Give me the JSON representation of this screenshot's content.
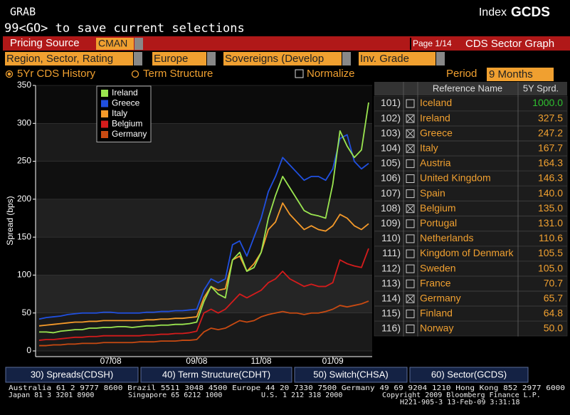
{
  "header": {
    "function": "GRAB",
    "index_label": "Index",
    "index_code": "GCDS",
    "message": "99<GO> to save current selections"
  },
  "toolbar": {
    "pricing_label": "Pricing Source",
    "pricing_value": "CMAN",
    "page": "Page 1/14",
    "screen_title": "CDS Sector Graph",
    "filters": [
      "Region, Sector, Rating",
      "Europe",
      "Sovereigns (Develop",
      "Inv. Grade"
    ]
  },
  "options": {
    "modes": [
      {
        "label": "5Yr CDS History",
        "selected": true
      },
      {
        "label": "Term Structure",
        "selected": false
      }
    ],
    "normalize": {
      "label": "Normalize",
      "checked": false
    },
    "period_label": "Period",
    "period_value": "9 Months"
  },
  "chart_data": {
    "type": "line",
    "ylabel": "Spread (bps)",
    "categories": [
      null,
      null,
      null,
      null,
      null,
      null,
      null,
      null,
      null,
      null,
      "07/08",
      null,
      null,
      null,
      null,
      null,
      null,
      null,
      null,
      null,
      null,
      null,
      "09/08",
      null,
      null,
      null,
      null,
      null,
      null,
      null,
      null,
      "11/08",
      null,
      null,
      null,
      null,
      null,
      null,
      null,
      null,
      null,
      "01/09",
      null,
      null,
      null,
      null,
      null
    ],
    "series": [
      {
        "name": "Ireland",
        "color": "#9be650",
        "values": [
          25,
          25,
          24,
          26,
          27,
          28,
          28,
          30,
          30,
          31,
          31,
          32,
          32,
          31,
          32,
          33,
          33,
          34,
          34,
          35,
          35,
          36,
          38,
          65,
          85,
          75,
          70,
          120,
          130,
          105,
          110,
          130,
          175,
          205,
          230,
          215,
          200,
          185,
          180,
          178,
          175,
          220,
          290,
          270,
          255,
          265,
          327.5
        ]
      },
      {
        "name": "Greece",
        "color": "#2050e0",
        "values": [
          42,
          44,
          45,
          46,
          48,
          49,
          50,
          50,
          50,
          51,
          51,
          50,
          50,
          50,
          50,
          51,
          51,
          52,
          52,
          53,
          53,
          54,
          55,
          80,
          95,
          90,
          95,
          140,
          145,
          125,
          150,
          175,
          210,
          230,
          255,
          245,
          235,
          225,
          230,
          230,
          225,
          240,
          280,
          285,
          250,
          240,
          247.2
        ]
      },
      {
        "name": "Italy",
        "color": "#f59a2a",
        "values": [
          33,
          34,
          35,
          36,
          37,
          38,
          38,
          39,
          39,
          40,
          40,
          40,
          40,
          40,
          40,
          41,
          41,
          42,
          42,
          43,
          43,
          44,
          45,
          70,
          85,
          80,
          82,
          120,
          125,
          105,
          115,
          130,
          160,
          170,
          195,
          180,
          170,
          160,
          165,
          160,
          158,
          165,
          180,
          175,
          165,
          160,
          167.7
        ]
      },
      {
        "name": "Belgium",
        "color": "#d41c1c",
        "values": [
          14,
          15,
          15,
          16,
          17,
          18,
          18,
          19,
          19,
          20,
          20,
          20,
          20,
          20,
          20,
          21,
          21,
          22,
          22,
          23,
          23,
          24,
          26,
          50,
          55,
          50,
          55,
          65,
          75,
          70,
          75,
          80,
          90,
          95,
          105,
          95,
          90,
          85,
          88,
          85,
          85,
          90,
          120,
          115,
          112,
          110,
          135
        ]
      },
      {
        "name": "Germany",
        "color": "#c84a12",
        "values": [
          7,
          7,
          8,
          8,
          9,
          9,
          10,
          10,
          10,
          11,
          11,
          11,
          11,
          11,
          12,
          12,
          12,
          13,
          13,
          13,
          14,
          14,
          15,
          25,
          30,
          28,
          30,
          35,
          40,
          38,
          40,
          45,
          48,
          50,
          52,
          50,
          50,
          48,
          50,
          50,
          52,
          55,
          60,
          58,
          60,
          62,
          65.7
        ]
      }
    ],
    "ylim": [
      0,
      350
    ],
    "yticks": [
      0,
      50,
      100,
      150,
      200,
      250,
      300,
      350
    ],
    "grid": true,
    "legend": "upper left"
  },
  "table": {
    "columns": [
      "Reference Name",
      "5Y Sprd."
    ],
    "rows": [
      {
        "number": "101)",
        "checked": false,
        "name": "Iceland",
        "value": "1000.0",
        "color": "#2fc02f"
      },
      {
        "number": "102)",
        "checked": true,
        "name": "Ireland",
        "value": "327.5",
        "color": "#f0a030"
      },
      {
        "number": "103)",
        "checked": true,
        "name": "Greece",
        "value": "247.2",
        "color": "#f0a030"
      },
      {
        "number": "104)",
        "checked": true,
        "name": "Italy",
        "value": "167.7",
        "color": "#f0a030"
      },
      {
        "number": "105)",
        "checked": false,
        "name": "Austria",
        "value": "164.3",
        "color": "#f0a030"
      },
      {
        "number": "106)",
        "checked": false,
        "name": "United Kingdom",
        "value": "146.3",
        "color": "#f0a030"
      },
      {
        "number": "107)",
        "checked": false,
        "name": "Spain",
        "value": "140.0",
        "color": "#f0a030"
      },
      {
        "number": "108)",
        "checked": true,
        "name": "Belgium",
        "value": "135.0",
        "color": "#f0a030"
      },
      {
        "number": "109)",
        "checked": false,
        "name": "Portugal",
        "value": "131.0",
        "color": "#f0a030"
      },
      {
        "number": "110)",
        "checked": false,
        "name": "Netherlands",
        "value": "110.6",
        "color": "#f0a030"
      },
      {
        "number": "111)",
        "checked": false,
        "name": "Kingdom of Denmark",
        "value": "105.5",
        "color": "#f0a030"
      },
      {
        "number": "112)",
        "checked": false,
        "name": "Sweden",
        "value": "105.0",
        "color": "#f0a030"
      },
      {
        "number": "113)",
        "checked": false,
        "name": "France",
        "value": "70.7",
        "color": "#f0a030"
      },
      {
        "number": "114)",
        "checked": true,
        "name": "Germany",
        "value": "65.7",
        "color": "#f0a030"
      },
      {
        "number": "115)",
        "checked": false,
        "name": "Finland",
        "value": "64.8",
        "color": "#f0a030"
      },
      {
        "number": "116)",
        "checked": false,
        "name": "Norway",
        "value": "50.0",
        "color": "#f0a030"
      }
    ]
  },
  "tabs": [
    "30) Spreads(CDSH)",
    "40) Term Structure(CDHT)",
    "50) Switch(CHSA)",
    "60) Sector(GCDS)"
  ],
  "footer": [
    "Australia 61 2 9777 8600 Brazil 5511 3048 4500 Europe 44 20 7330 7500 Germany 49 69 9204 1210 Hong Kong 852 2977 6000",
    "Japan 81 3 3201 8900",
    "Singapore 65 6212 1000",
    "U.S. 1 212 318 2000",
    "Copyright 2009 Bloomberg Finance L.P.",
    "H221-905-3 13-Feb-09  3:31:18"
  ]
}
